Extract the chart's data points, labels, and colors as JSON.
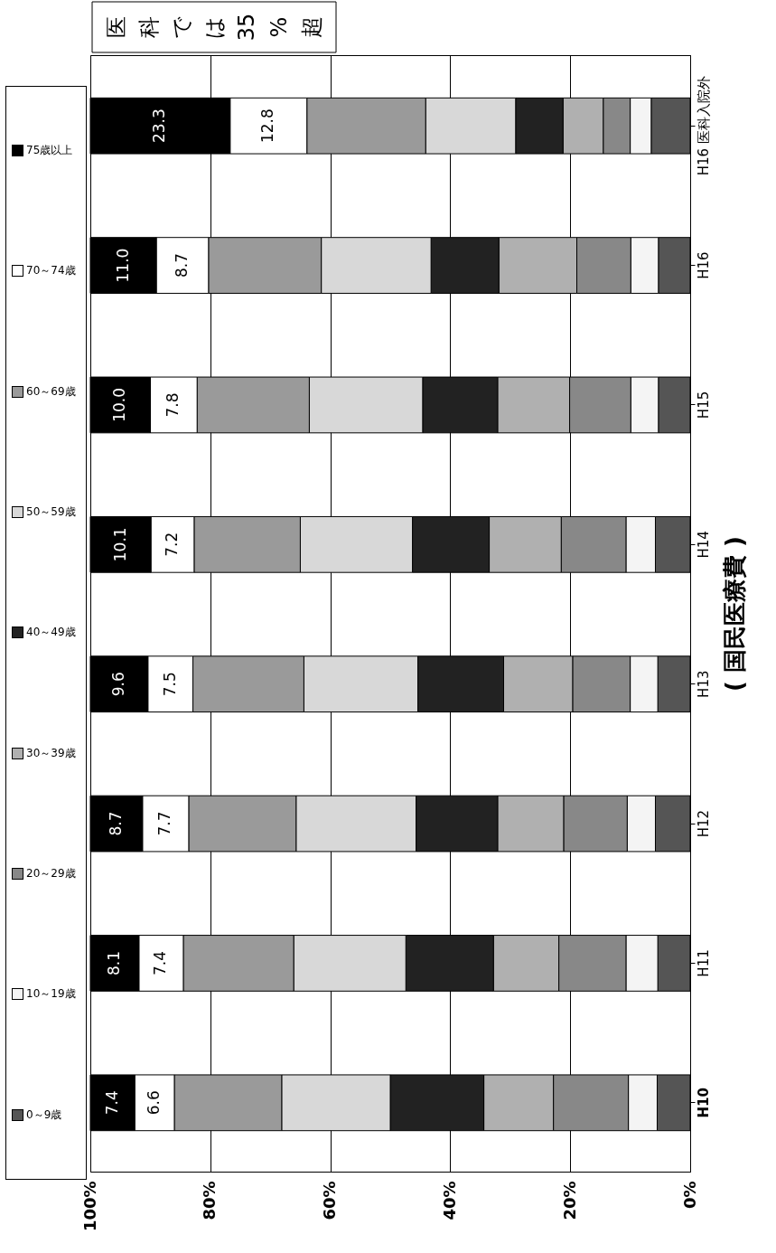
{
  "chart_data": {
    "type": "bar",
    "stacked": true,
    "orientation": "horizontal",
    "ylabel": "( 国民医療費 )",
    "categories": [
      "H16 医科入院外",
      "H16",
      "H15",
      "H14",
      "H13",
      "H12",
      "H11",
      "H10"
    ],
    "series": [
      {
        "name": "0～9歳",
        "color": "#555555",
        "values": [
          6.5,
          5.3,
          5.3,
          5.8,
          5.4,
          5.8,
          5.4,
          5.5
        ]
      },
      {
        "name": "10～19歳",
        "color": "#f4f4f4",
        "values": [
          3.5,
          4.6,
          4.6,
          4.9,
          4.6,
          4.7,
          5.3,
          4.8
        ]
      },
      {
        "name": "20～29歳",
        "color": "#888888",
        "values": [
          4.5,
          9.0,
          10.2,
          10.8,
          9.6,
          10.6,
          11.2,
          12.5
        ]
      },
      {
        "name": "30～39歳",
        "color": "#b0b0b0",
        "values": [
          6.7,
          13.0,
          12.0,
          12.0,
          11.5,
          11.0,
          10.9,
          11.6
        ]
      },
      {
        "name": "40～49歳",
        "color": "#222222",
        "values": [
          7.9,
          11.3,
          12.5,
          12.8,
          14.3,
          13.6,
          14.6,
          15.6
        ]
      },
      {
        "name": "50～59歳",
        "color": "#d8d8d8",
        "values": [
          15.0,
          18.3,
          18.9,
          18.7,
          19.0,
          20.0,
          18.7,
          18.1
        ]
      },
      {
        "name": "60～69歳",
        "color": "#9a9a9a",
        "values": [
          19.8,
          18.8,
          18.7,
          17.7,
          18.5,
          17.9,
          18.4,
          17.9
        ]
      },
      {
        "name": "70～74歳",
        "color": "#ffffff",
        "values": [
          12.8,
          8.7,
          7.8,
          7.2,
          7.5,
          7.7,
          7.4,
          6.6
        ],
        "value_labels": [
          "12.8",
          "8.7",
          "7.8",
          "7.2",
          "7.5",
          "7.7",
          "7.4",
          "6.6"
        ]
      },
      {
        "name": "75歳以上",
        "color": "#000000",
        "values": [
          23.3,
          11.0,
          10.0,
          10.1,
          9.6,
          8.7,
          8.1,
          7.4
        ],
        "value_labels": [
          "23.3",
          "11.0",
          "10.0",
          "10.1",
          "9.6",
          "8.7",
          "8.1",
          "7.4"
        ]
      }
    ],
    "xlim": [
      100,
      0
    ],
    "xticks": [
      {
        "value": 100,
        "label": "100%"
      },
      {
        "value": 80,
        "label": "80%"
      },
      {
        "value": 60,
        "label": "60%"
      },
      {
        "value": 40,
        "label": "40%"
      },
      {
        "value": 20,
        "label": "20%"
      },
      {
        "value": 0,
        "label": "0%"
      }
    ],
    "grid": "x",
    "legend": "left",
    "annotations": [
      "医科では35%超"
    ]
  }
}
